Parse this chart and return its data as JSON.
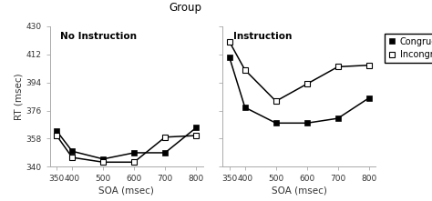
{
  "title": "Group",
  "soa_x": [
    350,
    400,
    500,
    600,
    700,
    800
  ],
  "no_instruction_congruent": [
    363,
    350,
    345,
    349,
    349,
    365
  ],
  "no_instruction_incongruent": [
    360,
    346,
    343,
    343,
    359,
    360
  ],
  "instruction_congruent": [
    410,
    378,
    368,
    368,
    371,
    384
  ],
  "instruction_incongruent": [
    420,
    402,
    382,
    393,
    404,
    405
  ],
  "ylim": [
    340,
    430
  ],
  "yticks": [
    340,
    358,
    376,
    394,
    412,
    430
  ],
  "xticks": [
    350,
    400,
    500,
    600,
    700,
    800
  ],
  "ylabel": "RT (msec)",
  "xlabel": "SOA (msec)",
  "panel1_label": "No Instruction",
  "panel2_label": "Instruction",
  "legend_congruent": "Congruent",
  "legend_incongruent": "Incongruent",
  "bg_color": "#ffffff",
  "fig_bg": "#ffffff",
  "spine_color": "#aaaaaa",
  "tick_fontsize": 6.5,
  "label_fontsize": 7.5,
  "title_fontsize": 8.5,
  "panel_label_fontsize": 7.5,
  "markersize": 4.5,
  "linewidth": 1.1
}
